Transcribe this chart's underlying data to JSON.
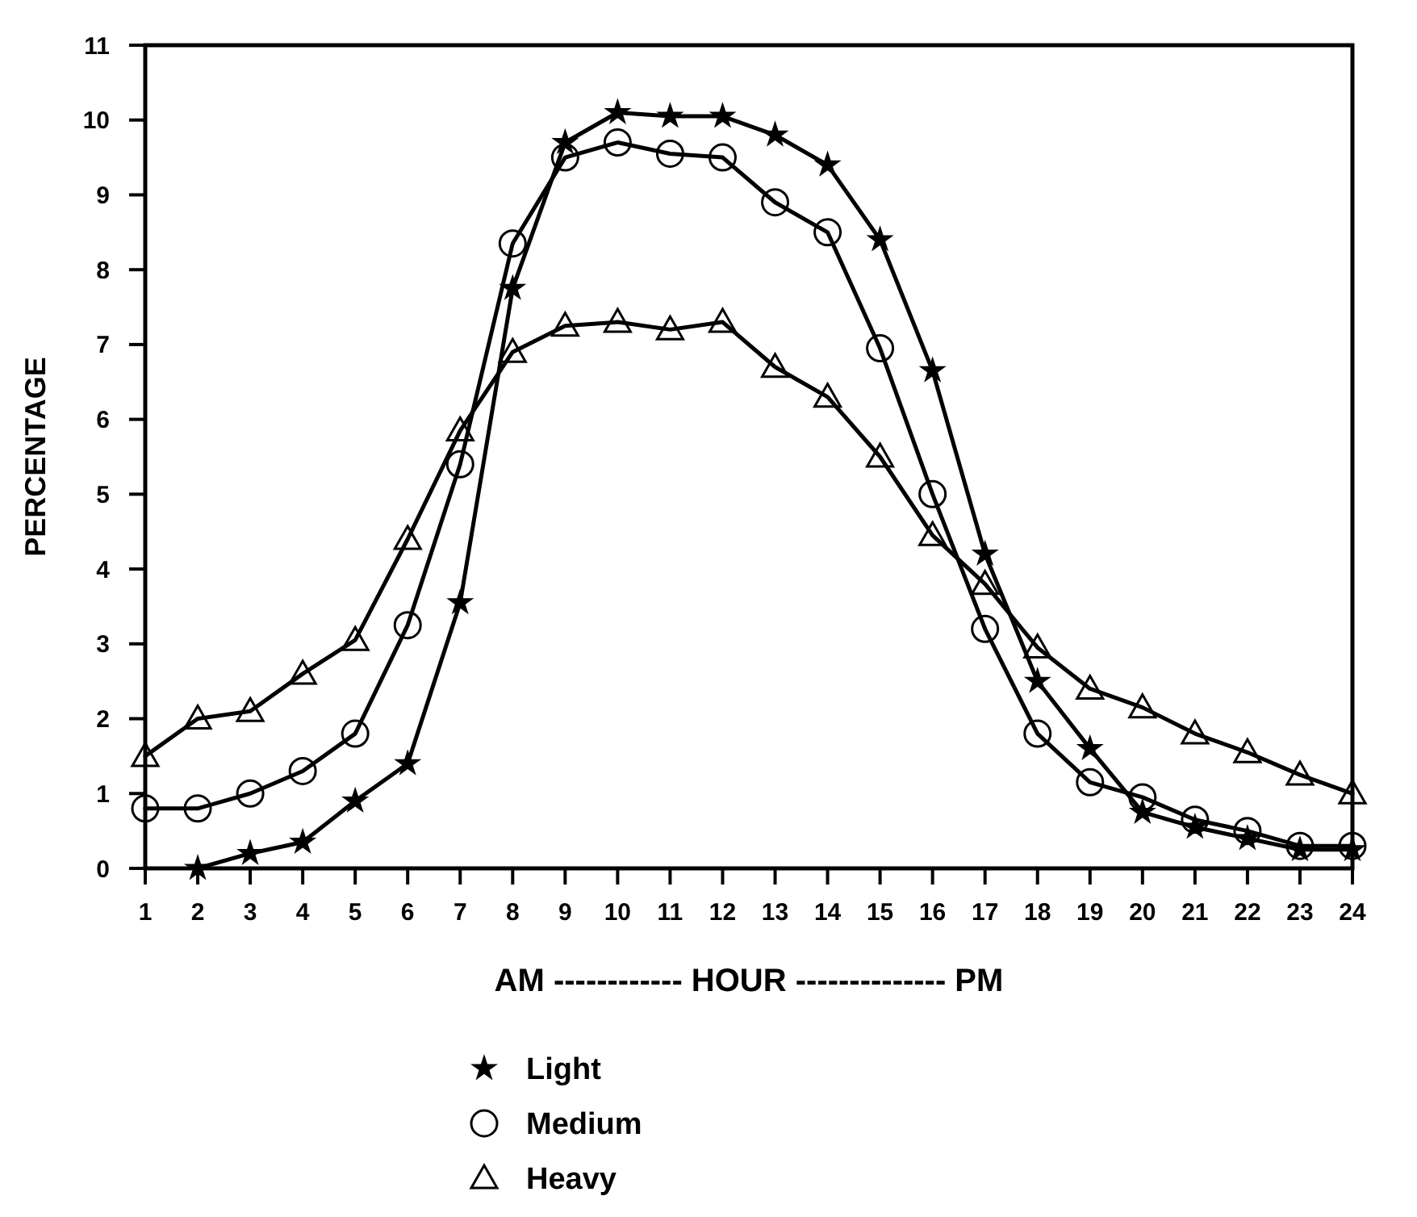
{
  "chart_data": {
    "type": "line",
    "xlabel": "AM ------------ HOUR -------------- PM",
    "ylabel": "PERCENTAGE",
    "x": [
      1,
      2,
      3,
      4,
      5,
      6,
      7,
      8,
      9,
      10,
      11,
      12,
      13,
      14,
      15,
      16,
      17,
      18,
      19,
      20,
      21,
      22,
      23,
      24
    ],
    "xlim": [
      1,
      24
    ],
    "xticks": [
      1,
      2,
      3,
      4,
      5,
      6,
      7,
      8,
      9,
      10,
      11,
      12,
      13,
      14,
      15,
      16,
      17,
      18,
      19,
      20,
      21,
      22,
      23,
      24
    ],
    "ylim": [
      0,
      11
    ],
    "yticks": [
      0,
      1,
      2,
      3,
      4,
      5,
      6,
      7,
      8,
      9,
      10,
      11
    ],
    "grid": false,
    "legend": "bottom",
    "line_style": "solid",
    "series": [
      {
        "name": "Light",
        "color": "#000000",
        "marker": "star",
        "values": [
          null,
          0,
          0.2,
          0.35,
          0.9,
          1.4,
          3.55,
          7.75,
          9.7,
          10.1,
          10.05,
          10.05,
          9.8,
          9.4,
          8.4,
          6.65,
          4.2,
          2.5,
          1.6,
          0.75,
          0.55,
          0.4,
          0.25,
          0.25
        ]
      },
      {
        "name": "Medium",
        "color": "#000000",
        "marker": "circle",
        "values": [
          0.8,
          0.8,
          1.0,
          1.3,
          1.8,
          3.25,
          5.4,
          8.35,
          9.5,
          9.7,
          9.55,
          9.5,
          8.9,
          8.5,
          6.95,
          5.0,
          3.2,
          1.8,
          1.15,
          0.95,
          0.65,
          0.5,
          0.3,
          0.3
        ]
      },
      {
        "name": "Heavy",
        "color": "#000000",
        "marker": "triangle",
        "values": [
          1.5,
          2.0,
          2.1,
          2.6,
          3.05,
          4.4,
          5.85,
          6.9,
          7.25,
          7.3,
          7.2,
          7.3,
          6.7,
          6.3,
          5.5,
          4.45,
          3.8,
          2.95,
          2.4,
          2.15,
          1.8,
          1.55,
          1.25,
          1.0
        ]
      }
    ]
  }
}
